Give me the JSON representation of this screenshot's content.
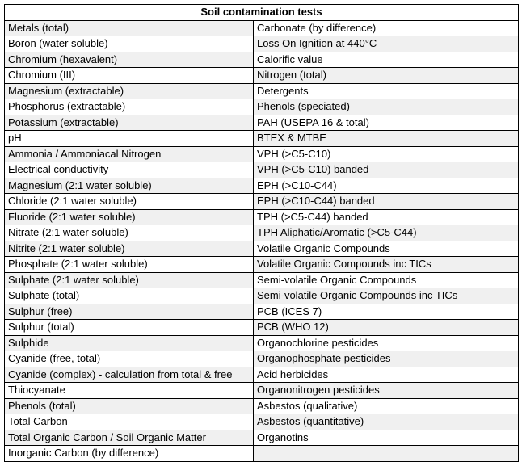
{
  "table": {
    "title": "Soil contamination tests",
    "rows": [
      {
        "left": "Metals (total)",
        "right": "Carbonate (by difference)"
      },
      {
        "left": "Boron (water soluble)",
        "right": "Loss On Ignition at 440°C"
      },
      {
        "left": "Chromium (hexavalent)",
        "right": "Calorific value"
      },
      {
        "left": "Chromium (III)",
        "right": "Nitrogen (total)"
      },
      {
        "left": "Magnesium (extractable)",
        "right": "Detergents"
      },
      {
        "left": "Phosphorus (extractable)",
        "right": "Phenols (speciated)"
      },
      {
        "left": "Potassium (extractable)",
        "right": "PAH (USEPA 16 & total)"
      },
      {
        "left": "pH",
        "right": "BTEX & MTBE"
      },
      {
        "left": "Ammonia / Ammoniacal Nitrogen",
        "right": "VPH (>C5-C10)"
      },
      {
        "left": "Electrical conductivity",
        "right": "VPH (>C5-C10) banded"
      },
      {
        "left": "Magnesium (2:1 water soluble)",
        "right": "EPH (>C10-C44)"
      },
      {
        "left": "Chloride (2:1 water soluble)",
        "right": "EPH (>C10-C44) banded"
      },
      {
        "left": "Fluoride (2:1 water soluble)",
        "right": "TPH (>C5-C44) banded"
      },
      {
        "left": "Nitrate (2:1 water soluble)",
        "right": "TPH Aliphatic/Aromatic (>C5-C44)"
      },
      {
        "left": "Nitrite (2:1 water soluble)",
        "right": "Volatile Organic Compounds"
      },
      {
        "left": "Phosphate (2:1 water soluble)",
        "right": "Volatile Organic Compounds inc TICs"
      },
      {
        "left": "Sulphate (2:1 water soluble)",
        "right": "Semi-volatile Organic Compounds"
      },
      {
        "left": "Sulphate (total)",
        "right": "Semi-volatile Organic Compounds inc TICs"
      },
      {
        "left": "Sulphur (free)",
        "right": "PCB (ICES 7)"
      },
      {
        "left": "Sulphur (total)",
        "right": "PCB (WHO 12)"
      },
      {
        "left": "Sulphide",
        "right": "Organochlorine pesticides"
      },
      {
        "left": "Cyanide (free, total)",
        "right": "Organophosphate pesticides"
      },
      {
        "left": "Cyanide (complex) - calculation from total & free",
        "right": "Acid herbicides"
      },
      {
        "left": "Thiocyanate",
        "right": "Organonitrogen pesticides"
      },
      {
        "left": "Phenols (total)",
        "right": "Asbestos (qualitative)"
      },
      {
        "left": "Total Carbon",
        "right": "Asbestos (quantitative)"
      },
      {
        "left": "Total Organic Carbon / Soil Organic Matter",
        "right": "Organotins"
      },
      {
        "left": "Inorganic Carbon (by difference)",
        "right": ""
      }
    ]
  },
  "colors": {
    "stripe": "#f0f0f0",
    "border": "#000000",
    "text": "#000000",
    "background": "#ffffff"
  }
}
